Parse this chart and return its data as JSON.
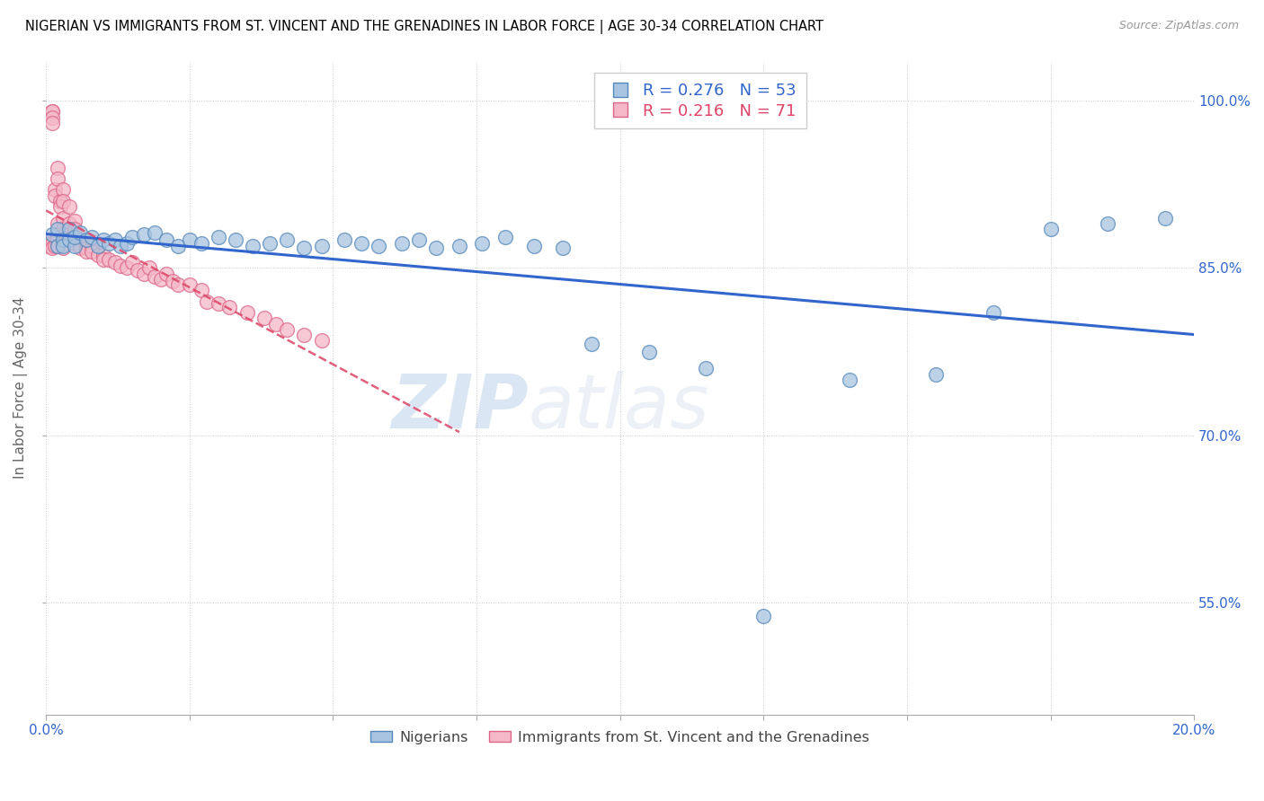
{
  "title": "NIGERIAN VS IMMIGRANTS FROM ST. VINCENT AND THE GRENADINES IN LABOR FORCE | AGE 30-34 CORRELATION CHART",
  "source": "Source: ZipAtlas.com",
  "ylabel": "In Labor Force | Age 30-34",
  "xmin": 0.0,
  "xmax": 0.2,
  "ymin": 0.45,
  "ymax": 1.035,
  "yticks": [
    0.55,
    0.7,
    0.85,
    1.0
  ],
  "ytick_labels": [
    "55.0%",
    "70.0%",
    "85.0%",
    "100.0%"
  ],
  "xtick_positions": [
    0.0,
    0.025,
    0.05,
    0.075,
    0.1,
    0.125,
    0.15,
    0.175,
    0.2
  ],
  "xtick_labels": [
    "0.0%",
    "",
    "",
    "",
    "",
    "",
    "",
    "",
    "20.0%"
  ],
  "blue_R": 0.276,
  "blue_N": 53,
  "pink_R": 0.216,
  "pink_N": 71,
  "blue_color": "#A8C4E0",
  "pink_color": "#F4B8C8",
  "blue_edge_color": "#5588BB",
  "pink_edge_color": "#DD6688",
  "blue_line_color": "#3366CC",
  "pink_line_color": "#DD4466",
  "watermark_zip": "ZIP",
  "watermark_atlas": "atlas",
  "legend_nigerians": "Nigerians",
  "legend_svg": "Immigrants from St. Vincent and the Grenadines",
  "blue_scatter_x": [
    0.001,
    0.002,
    0.002,
    0.003,
    0.003,
    0.004,
    0.004,
    0.005,
    0.005,
    0.006,
    0.007,
    0.008,
    0.009,
    0.01,
    0.011,
    0.012,
    0.013,
    0.014,
    0.015,
    0.017,
    0.019,
    0.021,
    0.023,
    0.025,
    0.027,
    0.03,
    0.033,
    0.036,
    0.039,
    0.042,
    0.045,
    0.048,
    0.052,
    0.055,
    0.058,
    0.062,
    0.065,
    0.068,
    0.072,
    0.076,
    0.08,
    0.085,
    0.09,
    0.095,
    0.105,
    0.115,
    0.125,
    0.14,
    0.155,
    0.165,
    0.175,
    0.185,
    0.195
  ],
  "blue_scatter_y": [
    0.88,
    0.87,
    0.885,
    0.875,
    0.87,
    0.885,
    0.875,
    0.87,
    0.878,
    0.882,
    0.875,
    0.878,
    0.87,
    0.875,
    0.872,
    0.875,
    0.87,
    0.872,
    0.878,
    0.88,
    0.882,
    0.875,
    0.87,
    0.875,
    0.872,
    0.878,
    0.875,
    0.87,
    0.872,
    0.875,
    0.868,
    0.87,
    0.875,
    0.872,
    0.87,
    0.872,
    0.875,
    0.868,
    0.87,
    0.872,
    0.878,
    0.87,
    0.868,
    0.782,
    0.775,
    0.76,
    0.538,
    0.75,
    0.755,
    0.81,
    0.885,
    0.89,
    0.895
  ],
  "pink_scatter_x": [
    0.0005,
    0.0005,
    0.001,
    0.001,
    0.001,
    0.001,
    0.001,
    0.001,
    0.001,
    0.0015,
    0.0015,
    0.0015,
    0.002,
    0.002,
    0.002,
    0.002,
    0.002,
    0.002,
    0.0025,
    0.0025,
    0.003,
    0.003,
    0.003,
    0.003,
    0.003,
    0.003,
    0.003,
    0.0035,
    0.004,
    0.004,
    0.004,
    0.0045,
    0.005,
    0.005,
    0.005,
    0.005,
    0.006,
    0.006,
    0.006,
    0.007,
    0.007,
    0.007,
    0.008,
    0.008,
    0.009,
    0.01,
    0.01,
    0.011,
    0.012,
    0.013,
    0.014,
    0.015,
    0.016,
    0.017,
    0.018,
    0.019,
    0.02,
    0.021,
    0.022,
    0.023,
    0.025,
    0.027,
    0.028,
    0.03,
    0.032,
    0.035,
    0.038,
    0.04,
    0.042,
    0.045,
    0.048
  ],
  "pink_scatter_y": [
    0.87,
    0.875,
    0.99,
    0.99,
    0.985,
    0.98,
    0.875,
    0.872,
    0.868,
    0.92,
    0.915,
    0.87,
    0.94,
    0.93,
    0.89,
    0.88,
    0.875,
    0.87,
    0.91,
    0.905,
    0.92,
    0.91,
    0.895,
    0.885,
    0.875,
    0.872,
    0.868,
    0.882,
    0.905,
    0.89,
    0.88,
    0.878,
    0.892,
    0.885,
    0.878,
    0.872,
    0.875,
    0.87,
    0.868,
    0.872,
    0.868,
    0.865,
    0.87,
    0.865,
    0.862,
    0.862,
    0.858,
    0.858,
    0.855,
    0.852,
    0.85,
    0.855,
    0.848,
    0.845,
    0.85,
    0.842,
    0.84,
    0.845,
    0.838,
    0.835,
    0.835,
    0.83,
    0.82,
    0.818,
    0.815,
    0.81,
    0.805,
    0.8,
    0.795,
    0.79,
    0.785
  ]
}
